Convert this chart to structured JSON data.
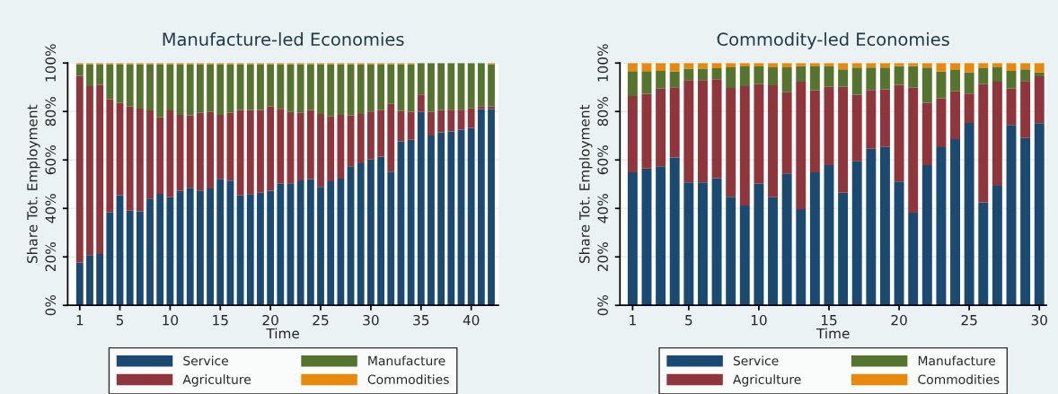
{
  "chart_data": [
    {
      "type": "bar",
      "stacked": true,
      "title": "Manufacture-led Economies",
      "xlabel": "Time",
      "ylabel": "Share Tot. Employment",
      "x": [
        1,
        2,
        3,
        4,
        5,
        6,
        7,
        8,
        9,
        10,
        11,
        12,
        13,
        14,
        15,
        16,
        17,
        18,
        19,
        20,
        21,
        22,
        23,
        24,
        25,
        26,
        27,
        28,
        29,
        30,
        31,
        32,
        33,
        34,
        35,
        36,
        37,
        38,
        39,
        40,
        41,
        42
      ],
      "xlim": [
        -0.2,
        42.7
      ],
      "xticks": [
        1,
        5,
        10,
        15,
        20,
        25,
        30,
        35,
        40
      ],
      "ylim": [
        0,
        100
      ],
      "yticks": [
        {
          "value": 0,
          "label": "0%"
        },
        {
          "value": 20,
          "label": "20%"
        },
        {
          "value": 40,
          "label": "40%"
        },
        {
          "value": 60,
          "label": "60%"
        },
        {
          "value": 80,
          "label": "80%"
        },
        {
          "value": 100,
          "label": "100%"
        }
      ],
      "grid": "y",
      "legend": "bottom",
      "series": [
        {
          "name": "Service",
          "color": "#1a4a72",
          "values": [
            17.7,
            20.7,
            21.2,
            38.3,
            45.4,
            39.1,
            38.8,
            44.1,
            46.0,
            44.6,
            47.2,
            48.5,
            47.4,
            48.2,
            52.2,
            51.5,
            45.4,
            45.9,
            46.5,
            47.3,
            50.2,
            50.4,
            51.6,
            52.1,
            48.9,
            51.2,
            52.3,
            57.4,
            58.6,
            60.2,
            61.4,
            55.2,
            67.7,
            68.3,
            79.8,
            70.1,
            71.4,
            71.8,
            72.5,
            73.1,
            81.0,
            81.0
          ]
        },
        {
          "name": "Agriculture",
          "color": "#90353b",
          "values": [
            77.0,
            69.8,
            69.8,
            46.8,
            38.2,
            42.9,
            42.4,
            36.4,
            31.6,
            35.9,
            31.4,
            29.9,
            32.0,
            31.6,
            26.4,
            27.9,
            35.2,
            34.7,
            34.1,
            34.7,
            30.9,
            29.4,
            27.8,
            28.5,
            30.1,
            26.8,
            26.3,
            21.0,
            20.4,
            19.8,
            19.2,
            27.9,
            12.6,
            11.6,
            7.2,
            9.8,
            9.2,
            8.9,
            8.2,
            8.2,
            1.2,
            1.0
          ]
        },
        {
          "name": "Manufacture",
          "color": "#55752f",
          "values": [
            4.8,
            9.0,
            8.5,
            14.4,
            15.9,
            17.5,
            18.3,
            19.0,
            21.9,
            19.0,
            20.9,
            21.1,
            20.1,
            19.7,
            20.9,
            20.1,
            18.9,
            18.9,
            18.9,
            17.5,
            18.4,
            19.7,
            20.1,
            18.9,
            20.5,
            21.5,
            20.9,
            21.1,
            20.5,
            19.5,
            18.9,
            16.4,
            19.2,
            19.6,
            13.0,
            20.1,
            19.4,
            19.3,
            19.3,
            18.7,
            17.8,
            17.5
          ]
        },
        {
          "name": "Commodities",
          "color": "#e8890c",
          "values": [
            0.5,
            0.5,
            0.5,
            0.5,
            0.5,
            0.5,
            0.5,
            0.5,
            0.5,
            0.5,
            0.5,
            0.5,
            0.5,
            0.5,
            0.5,
            0.5,
            0.5,
            0.5,
            0.5,
            0.5,
            0.5,
            0.5,
            0.5,
            0.5,
            0.5,
            0.5,
            0.5,
            0.5,
            0.5,
            0.5,
            0.5,
            0.5,
            0.5,
            0.5,
            0,
            0,
            0,
            0,
            0,
            0,
            0,
            0.5
          ]
        }
      ]
    },
    {
      "type": "bar",
      "stacked": true,
      "title": "Commodity-led Economies",
      "xlabel": "Time",
      "ylabel": "Share Tot. Employment",
      "x": [
        1,
        2,
        3,
        4,
        5,
        6,
        7,
        8,
        9,
        10,
        11,
        12,
        13,
        14,
        15,
        16,
        17,
        18,
        19,
        20,
        21,
        22,
        23,
        24,
        25,
        26,
        27,
        28,
        29,
        30
      ],
      "xlim": [
        0.1,
        30.5
      ],
      "xticks": [
        1,
        5,
        10,
        15,
        20,
        25,
        30
      ],
      "ylim": [
        0,
        100
      ],
      "yticks": [
        {
          "value": 0,
          "label": "0%"
        },
        {
          "value": 20,
          "label": "20%"
        },
        {
          "value": 40,
          "label": "40%"
        },
        {
          "value": 60,
          "label": "60%"
        },
        {
          "value": 80,
          "label": "80%"
        },
        {
          "value": 100,
          "label": "100%"
        }
      ],
      "grid": "y",
      "legend": "bottom",
      "series": [
        {
          "name": "Service",
          "color": "#1a4a72",
          "values": [
            54.9,
            56.5,
            57.4,
            61.0,
            50.7,
            50.7,
            52.5,
            44.8,
            41.2,
            50.2,
            44.6,
            54.4,
            39.7,
            54.9,
            57.9,
            46.5,
            59.6,
            64.6,
            65.4,
            51.1,
            38.2,
            57.9,
            65.3,
            68.6,
            75.3,
            42.5,
            49.3,
            74.4,
            69.1,
            75.2
          ]
        },
        {
          "name": "Agriculture",
          "color": "#90353b",
          "values": [
            31.5,
            30.8,
            32.0,
            29.0,
            42.3,
            42.3,
            40.8,
            44.9,
            49.3,
            41.1,
            46.2,
            33.6,
            52.6,
            33.9,
            32.3,
            43.7,
            27.3,
            24.3,
            23.8,
            39.9,
            51.6,
            25.6,
            20.2,
            19.7,
            12.1,
            48.8,
            43.0,
            15.1,
            23.5,
            19.3
          ]
        },
        {
          "name": "Manufacture",
          "color": "#55752f",
          "values": [
            10.3,
            9.4,
            7.4,
            6.6,
            4.7,
            4.7,
            4.6,
            8.5,
            8.1,
            7.3,
            7.4,
            10.2,
            6.4,
            9.8,
            8.4,
            7.2,
            11.2,
            9.2,
            8.9,
            7.7,
            8.9,
            14.6,
            11.0,
            8.8,
            8.8,
            6.6,
            5.9,
            7.3,
            4.8,
            1.6
          ]
        },
        {
          "name": "Commodities",
          "color": "#e8890c",
          "values": [
            3.3,
            3.3,
            3.2,
            3.4,
            2.3,
            2.3,
            2.1,
            1.8,
            1.4,
            1.4,
            1.8,
            1.8,
            1.3,
            1.4,
            1.4,
            2.6,
            1.9,
            1.9,
            1.9,
            1.3,
            1.3,
            1.9,
            3.5,
            2.9,
            3.8,
            2.1,
            1.8,
            3.2,
            2.6,
            3.9
          ]
        }
      ]
    }
  ]
}
